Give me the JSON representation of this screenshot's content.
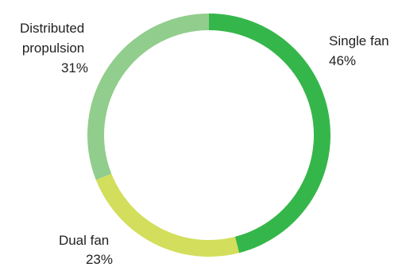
{
  "chart_data": {
    "type": "pie",
    "style": "donut",
    "title": "",
    "start": "top",
    "direction": "clockwise",
    "slices": [
      {
        "name": "Single fan",
        "value": 46,
        "value_label": "46%",
        "color": "#35b64a"
      },
      {
        "name": "Dual fan",
        "value": 23,
        "value_label": "23%",
        "color": "#d2de5c"
      },
      {
        "name": "Distributed propulsion",
        "name_lines": [
          "Distributed",
          "propulsion"
        ],
        "value": 31,
        "value_label": "31%",
        "color": "#91cd8c"
      }
    ]
  }
}
